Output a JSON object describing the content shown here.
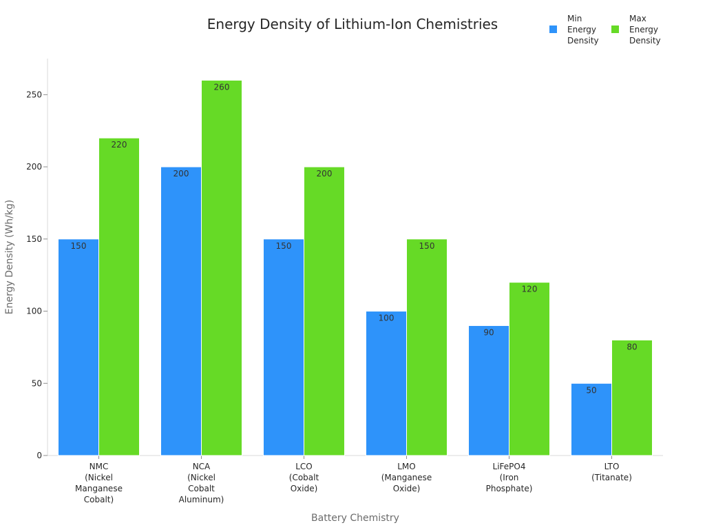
{
  "chart_data": {
    "type": "bar",
    "title": "Energy Density of Lithium-Ion Chemistries",
    "xlabel": "Battery Chemistry",
    "ylabel": "Energy Density (Wh/kg)",
    "ylim": [
      0,
      275
    ],
    "yticks": [
      0,
      50,
      100,
      150,
      200,
      250
    ],
    "grid": false,
    "legend_position": "top-right",
    "categories": [
      "NMC\n(Nickel\nManganese\nCobalt)",
      "NCA\n(Nickel\nCobalt\nAluminum)",
      "LCO\n(Cobalt\nOxide)",
      "LMO\n(Manganese\nOxide)",
      "LiFePO4\n(Iron\nPhosphate)",
      "LTO\n(Titanate)"
    ],
    "series": [
      {
        "name": "Min Energy Density",
        "legend_lines": [
          "Min",
          "Energy",
          "Density"
        ],
        "color": "#2e93fa",
        "values": [
          150,
          200,
          150,
          100,
          90,
          50
        ]
      },
      {
        "name": "Max Energy Density",
        "legend_lines": [
          "Max",
          "Energy",
          "Density"
        ],
        "color": "#66da26",
        "values": [
          220,
          260,
          200,
          150,
          120,
          80
        ]
      }
    ]
  }
}
